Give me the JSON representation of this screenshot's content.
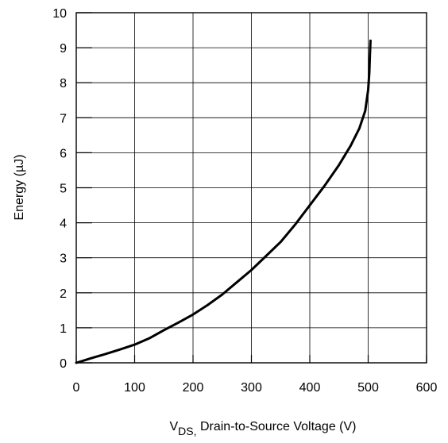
{
  "chart_data": {
    "type": "line",
    "title": "",
    "xlabel": {
      "main": "V",
      "subscript": "DS,",
      "suffix": " Drain-to-Source Voltage (V)"
    },
    "ylabel": "Energy (µJ)",
    "xlim": [
      0,
      600
    ],
    "ylim": [
      0,
      10
    ],
    "x_ticks": [
      0,
      100,
      200,
      300,
      400,
      500,
      600
    ],
    "y_ticks": [
      0,
      1,
      2,
      3,
      4,
      5,
      6,
      7,
      8,
      9,
      10
    ],
    "x_tick_labels": [
      "0",
      "100",
      "200",
      "300",
      "400",
      "500",
      "600"
    ],
    "y_tick_labels": [
      "0",
      "1",
      "2",
      "3",
      "4",
      "5",
      "6",
      "7",
      "8",
      "9",
      "10"
    ],
    "grid": true,
    "series": [
      {
        "x": [
          0,
          10,
          25,
          50,
          75,
          100,
          125,
          150,
          175,
          200,
          225,
          250,
          275,
          300,
          325,
          350,
          375,
          400,
          425,
          450,
          470,
          485,
          495,
          500,
          502,
          503,
          504
        ],
        "y": [
          0,
          0.05,
          0.13,
          0.25,
          0.38,
          0.52,
          0.7,
          0.93,
          1.15,
          1.38,
          1.65,
          1.95,
          2.3,
          2.65,
          3.05,
          3.45,
          3.95,
          4.5,
          5.05,
          5.65,
          6.2,
          6.7,
          7.2,
          7.8,
          8.3,
          8.8,
          9.2
        ]
      }
    ],
    "colors": {
      "line": "#000000",
      "grid": "#000000",
      "frame": "#000000"
    }
  }
}
